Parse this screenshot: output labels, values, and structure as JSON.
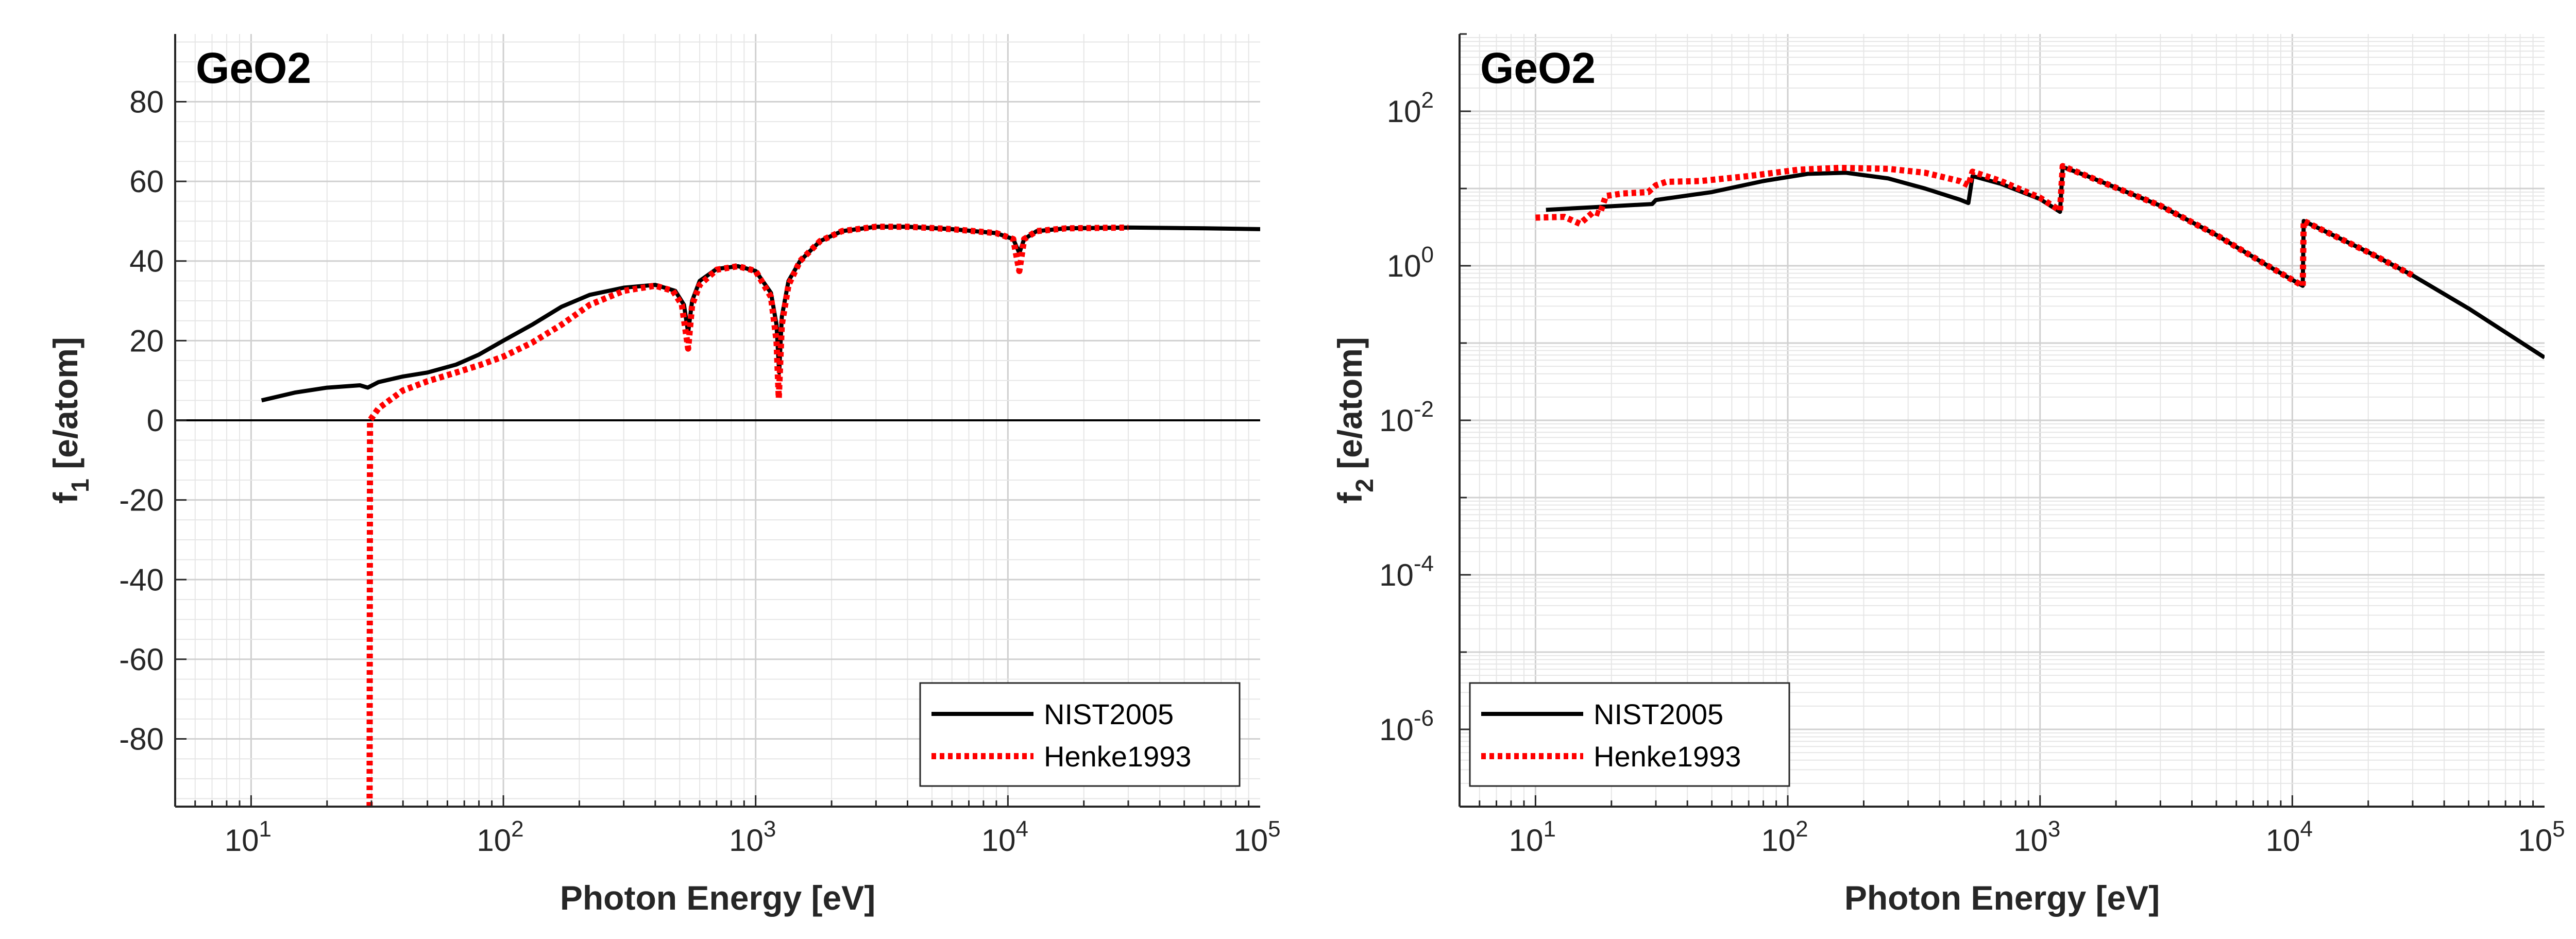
{
  "chart_data": [
    {
      "type": "line",
      "title": "GeO2",
      "xlabel": "Photon Energy [eV]",
      "ylabel_main": "f",
      "ylabel_sub": "1",
      "ylabel_rest": " [e/atom]",
      "xscale": "log",
      "xlim": [
        5,
        100000
      ],
      "ylim": [
        -97,
        97
      ],
      "yscale": "linear",
      "grid": true,
      "legend_position": "bottom-right",
      "x_ticks": [
        10,
        100,
        1000,
        10000,
        100000
      ],
      "x_tick_labels": [
        {
          "base": "10",
          "exp": "1"
        },
        {
          "base": "10",
          "exp": "2"
        },
        {
          "base": "10",
          "exp": "3"
        },
        {
          "base": "10",
          "exp": "4"
        },
        {
          "base": "10",
          "exp": "5"
        }
      ],
      "y_ticks": [
        -80,
        -60,
        -40,
        -20,
        0,
        20,
        40,
        60,
        80
      ],
      "y_tick_labels": [
        "-80",
        "-60",
        "-40",
        "-20",
        "0",
        "20",
        "40",
        "60",
        "80"
      ],
      "reference_line_y": 0,
      "series": [
        {
          "name": "NIST2005",
          "color": "#000000",
          "style": "solid",
          "points": [
            [
              11,
              5
            ],
            [
              15,
              7
            ],
            [
              20,
              8.2
            ],
            [
              27,
              8.8
            ],
            [
              29,
              8.2
            ],
            [
              32,
              9.6
            ],
            [
              40,
              11
            ],
            [
              50,
              12
            ],
            [
              65,
              14
            ],
            [
              80,
              16.5
            ],
            [
              100,
              20
            ],
            [
              130,
              24
            ],
            [
              170,
              28.5
            ],
            [
              220,
              31.5
            ],
            [
              300,
              33.3
            ],
            [
              400,
              34
            ],
            [
              480,
              32.5
            ],
            [
              520,
              29
            ],
            [
              540,
              22
            ],
            [
              560,
              30
            ],
            [
              600,
              35
            ],
            [
              700,
              38
            ],
            [
              850,
              38.7
            ],
            [
              1000,
              37.5
            ],
            [
              1150,
              32
            ],
            [
              1210,
              24
            ],
            [
              1240,
              12
            ],
            [
              1270,
              26
            ],
            [
              1350,
              35
            ],
            [
              1500,
              40
            ],
            [
              1800,
              45
            ],
            [
              2200,
              47.5
            ],
            [
              3000,
              48.6
            ],
            [
              4000,
              48.6
            ],
            [
              6000,
              48
            ],
            [
              9000,
              47
            ],
            [
              10500,
              45.5
            ],
            [
              11100,
              42
            ],
            [
              11600,
              45.5
            ],
            [
              13000,
              47.5
            ],
            [
              17000,
              48.2
            ],
            [
              30000,
              48.4
            ],
            [
              60000,
              48.2
            ],
            [
              100000,
              48
            ]
          ]
        },
        {
          "name": "Henke1993",
          "color": "#ff0000",
          "style": "dotted",
          "points": [
            [
              29.5,
              -97
            ],
            [
              29.6,
              0
            ],
            [
              32,
              3
            ],
            [
              40,
              7.5
            ],
            [
              50,
              9.8
            ],
            [
              65,
              12
            ],
            [
              80,
              13.8
            ],
            [
              100,
              16
            ],
            [
              130,
              19.5
            ],
            [
              170,
              24
            ],
            [
              220,
              29
            ],
            [
              300,
              32.5
            ],
            [
              400,
              33.8
            ],
            [
              470,
              32.5
            ],
            [
              510,
              29
            ],
            [
              540,
              18
            ],
            [
              560,
              29
            ],
            [
              600,
              34
            ],
            [
              700,
              37.8
            ],
            [
              850,
              38.7
            ],
            [
              1000,
              37.5
            ],
            [
              1150,
              31
            ],
            [
              1210,
              20
            ],
            [
              1235,
              5.5
            ],
            [
              1270,
              24
            ],
            [
              1350,
              34
            ],
            [
              1500,
              40
            ],
            [
              1800,
              45
            ],
            [
              2200,
              47.5
            ],
            [
              3000,
              48.6
            ],
            [
              4000,
              48.6
            ],
            [
              6000,
              48
            ],
            [
              9000,
              47
            ],
            [
              10500,
              45.5
            ],
            [
              11100,
              37.5
            ],
            [
              11600,
              45.5
            ],
            [
              13000,
              47.5
            ],
            [
              17000,
              48.2
            ],
            [
              30000,
              48.4
            ]
          ]
        }
      ]
    },
    {
      "type": "line",
      "title": "GeO2",
      "xlabel": "Photon Energy [eV]",
      "ylabel_main": "f",
      "ylabel_sub": "2",
      "ylabel_rest": " [e/atom]",
      "xscale": "log",
      "xlim": [
        5,
        100000
      ],
      "yscale": "log",
      "ylim": [
        1e-07,
        1000
      ],
      "grid": true,
      "legend_position": "bottom-left",
      "x_ticks": [
        10,
        100,
        1000,
        10000,
        100000
      ],
      "x_tick_labels": [
        {
          "base": "10",
          "exp": "1"
        },
        {
          "base": "10",
          "exp": "2"
        },
        {
          "base": "10",
          "exp": "3"
        },
        {
          "base": "10",
          "exp": "4"
        },
        {
          "base": "10",
          "exp": "5"
        }
      ],
      "y_ticks": [
        1e-06,
        0.0001,
        0.01,
        1,
        100
      ],
      "y_tick_labels": [
        {
          "base": "10",
          "exp": "-6"
        },
        {
          "base": "10",
          "exp": "-4"
        },
        {
          "base": "10",
          "exp": "-2"
        },
        {
          "base": "10",
          "exp": "0"
        },
        {
          "base": "10",
          "exp": "2"
        }
      ],
      "series": [
        {
          "name": "NIST2005",
          "color": "#000000",
          "style": "solid",
          "points": [
            [
              11,
              5.3
            ],
            [
              20,
              5.9
            ],
            [
              29,
              6.3
            ],
            [
              30,
              7.1
            ],
            [
              50,
              9
            ],
            [
              80,
              12.5
            ],
            [
              120,
              15.5
            ],
            [
              170,
              16
            ],
            [
              250,
              13.5
            ],
            [
              350,
              10
            ],
            [
              480,
              7.2
            ],
            [
              520,
              6.5
            ],
            [
              540,
              14.5
            ],
            [
              700,
              11.5
            ],
            [
              1000,
              7.3
            ],
            [
              1200,
              5
            ],
            [
              1230,
              19
            ],
            [
              1500,
              15
            ],
            [
              3000,
              6
            ],
            [
              5000,
              2.5
            ],
            [
              8000,
              1
            ],
            [
              11000,
              0.55
            ],
            [
              11100,
              3.8
            ],
            [
              20000,
              1.5
            ],
            [
              30000,
              0.75
            ],
            [
              50000,
              0.28
            ],
            [
              100000,
              0.065
            ]
          ]
        },
        {
          "name": "Henke1993",
          "color": "#ff0000",
          "style": "dotted",
          "points": [
            [
              10,
              4.2
            ],
            [
              13,
              4.3
            ],
            [
              15,
              3.5
            ],
            [
              17,
              5
            ],
            [
              18,
              4.7
            ],
            [
              19,
              8
            ],
            [
              22,
              8.6
            ],
            [
              28,
              9
            ],
            [
              30,
              11
            ],
            [
              33,
              12.2
            ],
            [
              45,
              12.5
            ],
            [
              70,
              14.5
            ],
            [
              110,
              17.5
            ],
            [
              160,
              18.5
            ],
            [
              250,
              18
            ],
            [
              350,
              16
            ],
            [
              480,
              12.5
            ],
            [
              520,
              11
            ],
            [
              540,
              16.5
            ],
            [
              700,
              12.5
            ],
            [
              1000,
              7.6
            ],
            [
              1200,
              5.2
            ],
            [
              1230,
              19.5
            ],
            [
              1500,
              15
            ],
            [
              3000,
              6
            ],
            [
              5000,
              2.5
            ],
            [
              8000,
              1
            ],
            [
              11000,
              0.55
            ],
            [
              11100,
              3.8
            ],
            [
              20000,
              1.5
            ],
            [
              30000,
              0.75
            ]
          ]
        }
      ]
    }
  ]
}
